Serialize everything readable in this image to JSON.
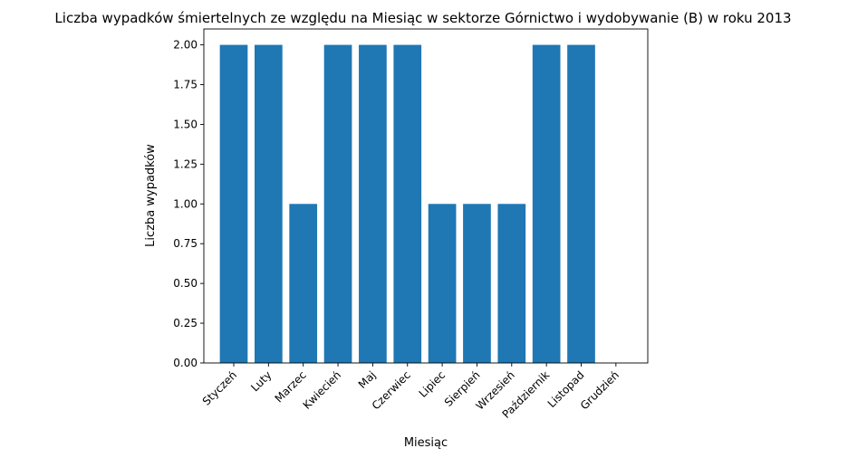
{
  "chart_data": {
    "type": "bar",
    "title": "Liczba wypadków śmiertelnych ze względu na Miesiąc w sektorze Górnictwo i wydobywanie (B)   w roku 2013",
    "xlabel": "Miesiąc",
    "ylabel": "Liczba wypadków",
    "categories": [
      "Styczeń",
      "Luty",
      "Marzec",
      "Kwiecień",
      "Maj",
      "Czerwiec",
      "Lipiec",
      "Sierpień",
      "Wrzesień",
      "Październik",
      "Listopad",
      "Grudzień"
    ],
    "values": [
      2,
      2,
      1,
      2,
      2,
      2,
      1,
      1,
      1,
      2,
      2,
      0
    ],
    "ylim": [
      0,
      2.1
    ],
    "yticks": [
      "0.00",
      "0.25",
      "0.50",
      "0.75",
      "1.00",
      "1.25",
      "1.50",
      "1.75",
      "2.00"
    ],
    "bar_color": "#1f77b4",
    "grid": false,
    "legend": "none"
  }
}
